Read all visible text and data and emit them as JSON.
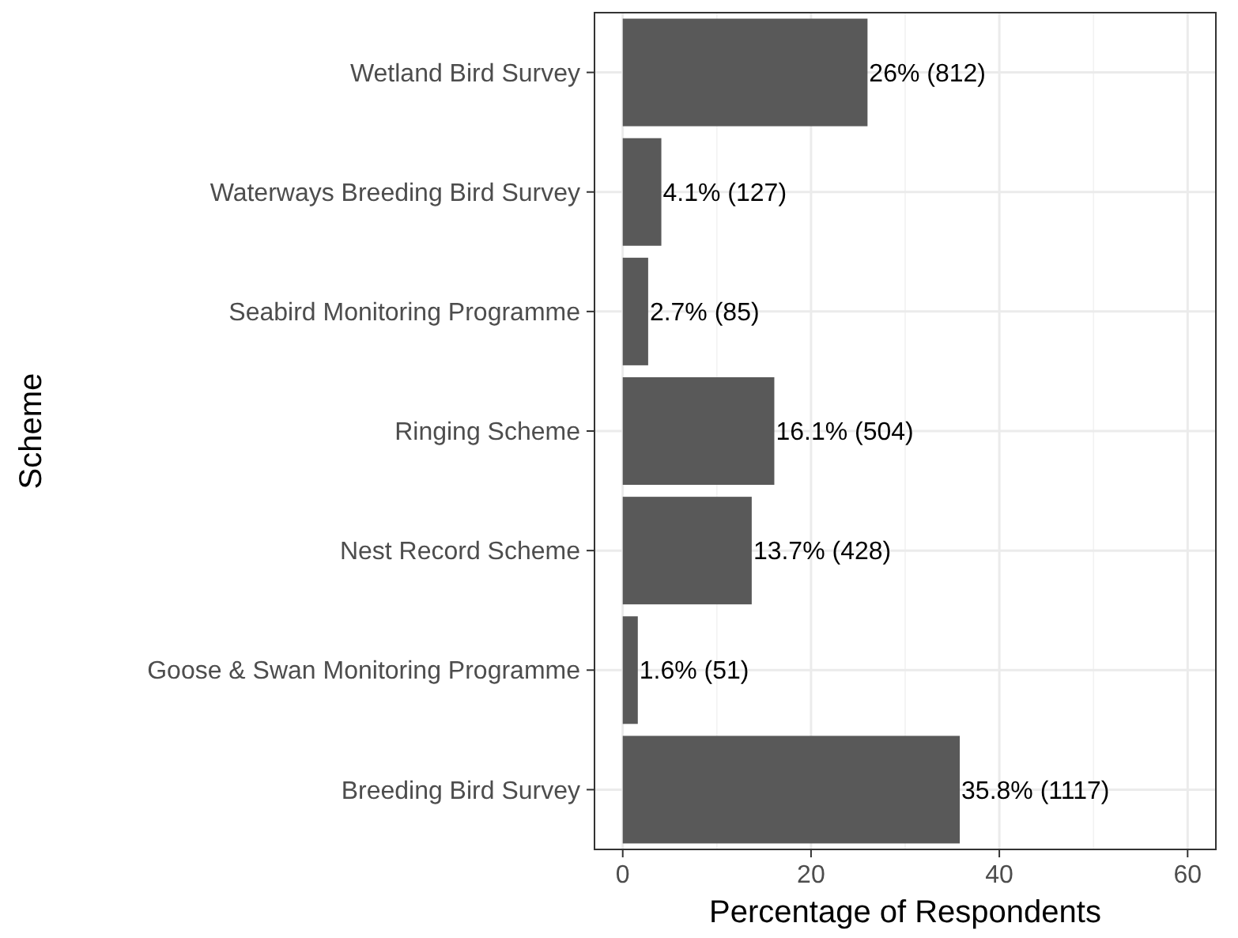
{
  "chart_data": {
    "type": "bar",
    "orientation": "horizontal",
    "xlabel": "Percentage of Respondents",
    "ylabel": "Scheme",
    "categories": [
      "Wetland Bird Survey",
      "Waterways Breeding Bird Survey",
      "Seabird Monitoring Programme",
      "Ringing Scheme",
      "Nest Record Scheme",
      "Goose & Swan Monitoring Programme",
      "Breeding Bird Survey"
    ],
    "values": [
      26,
      4.1,
      2.7,
      16.1,
      13.7,
      1.6,
      35.8
    ],
    "value_labels": [
      "26% (812)",
      "4.1% (127)",
      "2.7% (85)",
      "16.1% (504)",
      "13.7% (428)",
      "1.6% (51)",
      "35.8% (1117)"
    ],
    "color": "#595959",
    "xlim": [
      -3,
      63
    ],
    "xticks": [
      0,
      {
        "value": 10,
        "label": null
      },
      20,
      {
        "value": 30,
        "label": null
      },
      40,
      {
        "value": 50,
        "label": null
      },
      60
    ],
    "grid": true
  }
}
